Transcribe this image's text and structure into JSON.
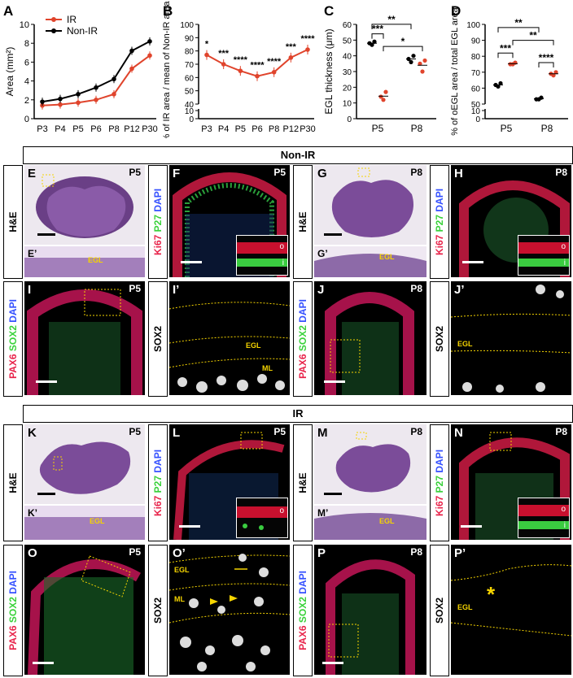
{
  "charts": {
    "A": {
      "letter": "A",
      "ylabel": "Area (mm²)",
      "legend": [
        "IR",
        "Non-IR"
      ],
      "categories": [
        "P3",
        "P4",
        "P5",
        "P6",
        "P8",
        "P12",
        "P30"
      ],
      "yticks": [
        "0",
        "2",
        "4",
        "6",
        "8",
        "10"
      ]
    },
    "B": {
      "letter": "B",
      "ylabel": "% of IR area / mean of Non-IR area",
      "categories": [
        "P3",
        "P4",
        "P5",
        "P6",
        "P8",
        "P12",
        "P30"
      ],
      "yticks": [
        "0",
        "10",
        "40",
        "50",
        "60",
        "70",
        "80",
        "90",
        "100"
      ],
      "stars": [
        "*",
        "***",
        "****",
        "****",
        "****",
        "***",
        "****"
      ]
    },
    "C": {
      "letter": "C",
      "ylabel": "EGL thickness (μm)",
      "categories": [
        "P5",
        "P8"
      ],
      "yticks": [
        "0",
        "10",
        "20",
        "30",
        "40",
        "50",
        "60"
      ],
      "stars": [
        "***",
        "*",
        "**"
      ]
    },
    "D": {
      "letter": "D",
      "ylabel": "% of oEGL area / total EGL area",
      "categories": [
        "P5",
        "P8"
      ],
      "yticks": [
        "0",
        "10",
        "50",
        "60",
        "70",
        "80",
        "90",
        "100"
      ],
      "stars": [
        "***",
        "**",
        "**",
        "****"
      ]
    }
  },
  "chart_data": [
    {
      "type": "line",
      "series": [
        {
          "name": "IR",
          "values": [
            1.4,
            1.5,
            1.7,
            2.0,
            2.6,
            5.3,
            6.7
          ]
        },
        {
          "name": "Non-IR",
          "values": [
            1.8,
            2.1,
            2.6,
            3.3,
            4.2,
            7.2,
            8.2
          ]
        }
      ],
      "categories": [
        "P3",
        "P4",
        "P5",
        "P6",
        "P8",
        "P12",
        "P30"
      ],
      "ylabel": "Area (mm²)",
      "ylim": [
        0,
        10
      ]
    },
    {
      "type": "line",
      "series": [
        {
          "values": [
            77,
            70,
            65,
            61,
            64,
            75,
            81
          ]
        }
      ],
      "categories": [
        "P3",
        "P4",
        "P5",
        "P6",
        "P8",
        "P12",
        "P30"
      ],
      "ylabel": "% of IR area / mean of Non-IR area",
      "ylim": [
        0,
        100
      ]
    },
    {
      "type": "scatter",
      "categories": [
        "P5",
        "P8"
      ],
      "series": [
        {
          "values": [
            [
              48,
              47,
              49
            ],
            [
              38,
              36,
              40
            ]
          ]
        },
        {
          "values": [
            [
              14,
              12,
              17
            ],
            [
              35,
              30,
              37
            ]
          ]
        }
      ],
      "ylabel": "EGL thickness (μm)",
      "ylim": [
        0,
        60
      ]
    },
    {
      "type": "scatter",
      "categories": [
        "P5",
        "P8"
      ],
      "series": [
        {
          "values": [
            [
              62,
              61,
              63
            ],
            [
              53,
              53,
              54
            ]
          ]
        },
        {
          "values": [
            [
              75,
              75,
              76
            ],
            [
              69,
              68,
              70
            ]
          ]
        }
      ],
      "ylabel": "% of oEGL area / total EGL area",
      "ylim": [
        0,
        100
      ]
    }
  ],
  "banners": {
    "nonir": "Non-IR",
    "ir": "IR"
  },
  "panels": {
    "E": {
      "letter": "E",
      "age": "P5"
    },
    "E2": {
      "letter": "E’",
      "ann": "EGL"
    },
    "F": {
      "letter": "F",
      "age": "P5",
      "o": "o",
      "i": "i"
    },
    "G": {
      "letter": "G",
      "age": "P8"
    },
    "G2": {
      "letter": "G’",
      "ann": "EGL"
    },
    "H": {
      "letter": "H",
      "age": "P8",
      "o": "o",
      "i": "i"
    },
    "I": {
      "letter": "I",
      "age": "P5"
    },
    "I2": {
      "letter": "I’",
      "ann": "EGL",
      "ann2": "ML"
    },
    "J": {
      "letter": "J",
      "age": "P8"
    },
    "J2": {
      "letter": "J’",
      "ann": "EGL"
    },
    "K": {
      "letter": "K",
      "age": "P5"
    },
    "K2": {
      "letter": "K’",
      "ann": "EGL"
    },
    "L": {
      "letter": "L",
      "age": "P5",
      "o": "o"
    },
    "M": {
      "letter": "M",
      "age": "P8"
    },
    "M2": {
      "letter": "M’",
      "ann": "EGL"
    },
    "N": {
      "letter": "N",
      "age": "P8",
      "o": "o",
      "i": "i"
    },
    "O": {
      "letter": "O",
      "age": "P5"
    },
    "O2": {
      "letter": "O’",
      "ann": "EGL",
      "ann2": "ML"
    },
    "P": {
      "letter": "P",
      "age": "P8"
    },
    "P2": {
      "letter": "P’",
      "ann": "EGL",
      "ann2": "*"
    }
  },
  "stain": {
    "he": "H&E",
    "ki67": "Ki67",
    "p27": "P27",
    "dapi": "DAPI",
    "pax6": "PAX6",
    "sox2": "SOX2"
  },
  "colors": {
    "ir": "#e0442c",
    "nonir": "#000000",
    "red": "#e8234a",
    "green": "#39d13a",
    "blue": "#3450ff",
    "yellow": "#f5d400"
  }
}
